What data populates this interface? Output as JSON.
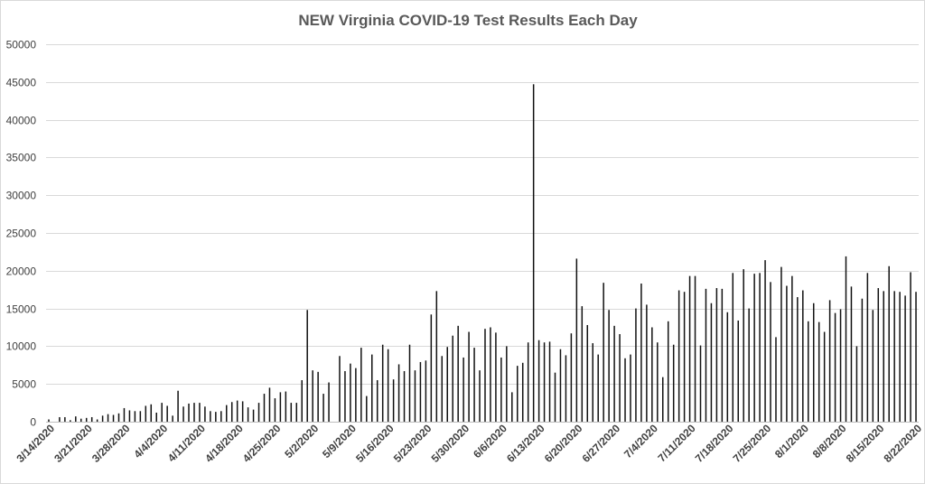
{
  "chart_data": {
    "type": "bar",
    "title": "NEW Virginia COVID-19 Test Results Each Day",
    "xlabel": "",
    "ylabel": "",
    "ylim": [
      0,
      50000
    ],
    "yticks": [
      "0",
      "5000",
      "10000",
      "15000",
      "20000",
      "25000",
      "30000",
      "35000",
      "40000",
      "45000",
      "50000"
    ],
    "grid": true,
    "legend": "none",
    "bar_color": "#111111",
    "x_tick_labels": [
      "3/14/2020",
      "3/21/2020",
      "3/28/2020",
      "4/4/2020",
      "4/11/2020",
      "4/18/2020",
      "4/25/2020",
      "5/2/2020",
      "5/9/2020",
      "5/16/2020",
      "5/23/2020",
      "5/30/2020",
      "6/6/2020",
      "6/13/2020",
      "6/20/2020",
      "6/27/2020",
      "7/4/2020",
      "7/11/2020",
      "7/18/2020",
      "7/25/2020",
      "8/1/2020",
      "8/8/2020",
      "8/15/2020",
      "8/22/2020"
    ],
    "start_date": "3/14/2020",
    "values": [
      300,
      0,
      600,
      600,
      200,
      700,
      400,
      500,
      600,
      300,
      800,
      1000,
      900,
      1100,
      1800,
      1500,
      1400,
      1400,
      2100,
      2300,
      1200,
      2500,
      2100,
      800,
      4100,
      2000,
      2400,
      2500,
      2500,
      2000,
      1400,
      1300,
      1400,
      2200,
      2600,
      2800,
      2700,
      1900,
      1600,
      2500,
      3700,
      4500,
      3100,
      3900,
      4000,
      2500,
      2500,
      5500,
      14800,
      6800,
      6600,
      3700,
      5200,
      0,
      8700,
      6700,
      7700,
      7100,
      9800,
      3400,
      8900,
      5500,
      10200,
      9600,
      5600,
      7600,
      6700,
      10200,
      6800,
      7900,
      8100,
      14200,
      17300,
      8700,
      9900,
      11400,
      12700,
      8500,
      11900,
      9800,
      6800,
      12300,
      12500,
      11800,
      8500,
      10000,
      3900,
      7400,
      7800,
      10500,
      44700,
      10800,
      10500,
      10600,
      6500,
      9600,
      8800,
      11700,
      21600,
      15300,
      12800,
      10400,
      8900,
      18400,
      14800,
      12700,
      11600,
      8400,
      8900,
      15000,
      18300,
      15500,
      12500,
      10500,
      5900,
      13300,
      10200,
      17400,
      17200,
      19300,
      19300,
      10100,
      17600,
      15700,
      17700,
      17600,
      14500,
      19700,
      13400,
      20200,
      15000,
      19600,
      19700,
      21400,
      18500,
      11200,
      20500,
      18000,
      19300,
      16500,
      17400,
      13300,
      15700,
      13200,
      11900,
      16100,
      14400,
      14900,
      21900,
      17900,
      10000,
      16300,
      19700,
      14800,
      17700,
      17300,
      20600,
      17300,
      17200,
      16700,
      19800,
      17200
    ]
  }
}
